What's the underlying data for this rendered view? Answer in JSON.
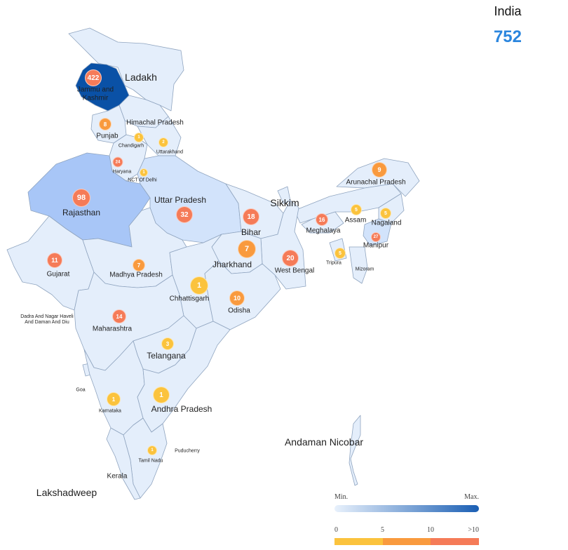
{
  "country": {
    "name": "India",
    "total": "752"
  },
  "colors": {
    "min": "#e8f1fc",
    "max": "#1b5fb4",
    "lightest": "#e4eefb",
    "light": "#d2e3fb",
    "medium": "#a8c6f7",
    "darkest": "#0a51a6",
    "border": "#8fa4bf",
    "marker_low": "#fbc33d",
    "marker_mid": "#f99a3e",
    "marker_high": "#f57b58"
  },
  "legend": {
    "min_label": "Min.",
    "max_label": "Max.",
    "ticks": [
      "0",
      "5",
      "10",
      ">10"
    ]
  },
  "regions": [
    {
      "name": "Ladakh",
      "value": null,
      "shade": "lightest"
    },
    {
      "name": "Jammu and Kashmir",
      "value": 422,
      "shade": "darkest"
    },
    {
      "name": "Himachal Pradesh",
      "value": null,
      "shade": "lightest"
    },
    {
      "name": "Punjab",
      "value": 8,
      "shade": "lightest"
    },
    {
      "name": "Chandigarh",
      "value": 1,
      "shade": "lightest"
    },
    {
      "name": "Uttarakhand",
      "value": 2,
      "shade": "lightest"
    },
    {
      "name": "Haryana",
      "value": 24,
      "shade": "lightest"
    },
    {
      "name": "NCT Of Delhi",
      "value": 1,
      "shade": "lightest"
    },
    {
      "name": "Rajasthan",
      "value": 98,
      "shade": "medium"
    },
    {
      "name": "Uttar Pradesh",
      "value": 32,
      "shade": "light"
    },
    {
      "name": "Bihar",
      "value": 18,
      "shade": "lightest"
    },
    {
      "name": "Sikkim",
      "value": null,
      "shade": "lightest"
    },
    {
      "name": "Arunachal Pradesh",
      "value": 9,
      "shade": "lightest"
    },
    {
      "name": "Assam",
      "value": 5,
      "shade": "lightest"
    },
    {
      "name": "Nagaland",
      "value": 5,
      "shade": "lightest"
    },
    {
      "name": "Meghalaya",
      "value": 16,
      "shade": "lightest"
    },
    {
      "name": "Manipur",
      "value": 27,
      "shade": "light"
    },
    {
      "name": "Tripura",
      "value": 5,
      "shade": "lightest"
    },
    {
      "name": "Mizoram",
      "value": null,
      "shade": "lightest"
    },
    {
      "name": "West Bengal",
      "value": 20,
      "shade": "lightest"
    },
    {
      "name": "Jharkhand",
      "value": 7,
      "shade": "lightest"
    },
    {
      "name": "Gujarat",
      "value": 11,
      "shade": "lightest"
    },
    {
      "name": "Madhya Pradesh",
      "value": 7,
      "shade": "lightest"
    },
    {
      "name": "Chhattisgarh",
      "value": 1,
      "shade": "lightest"
    },
    {
      "name": "Odisha",
      "value": 10,
      "shade": "lightest"
    },
    {
      "name": "Dadra And Nagar Haveli And Daman And Diu",
      "value": null,
      "shade": "lightest"
    },
    {
      "name": "Maharashtra",
      "value": 14,
      "shade": "lightest"
    },
    {
      "name": "Telangana",
      "value": 3,
      "shade": "lightest"
    },
    {
      "name": "Goa",
      "value": null,
      "shade": "lightest"
    },
    {
      "name": "Karnataka",
      "value": 1,
      "shade": "lightest"
    },
    {
      "name": "Andhra Pradesh",
      "value": 1,
      "shade": "lightest"
    },
    {
      "name": "Puducherry",
      "value": null,
      "shade": "lightest"
    },
    {
      "name": "Tamil Nadu",
      "value": 1,
      "shade": "lightest"
    },
    {
      "name": "Kerala",
      "value": null,
      "shade": "lightest"
    },
    {
      "name": "Andaman Nicobar",
      "value": null,
      "shade": "lightest"
    },
    {
      "name": "Lakshadweep",
      "value": null,
      "shade": "lightest"
    }
  ]
}
